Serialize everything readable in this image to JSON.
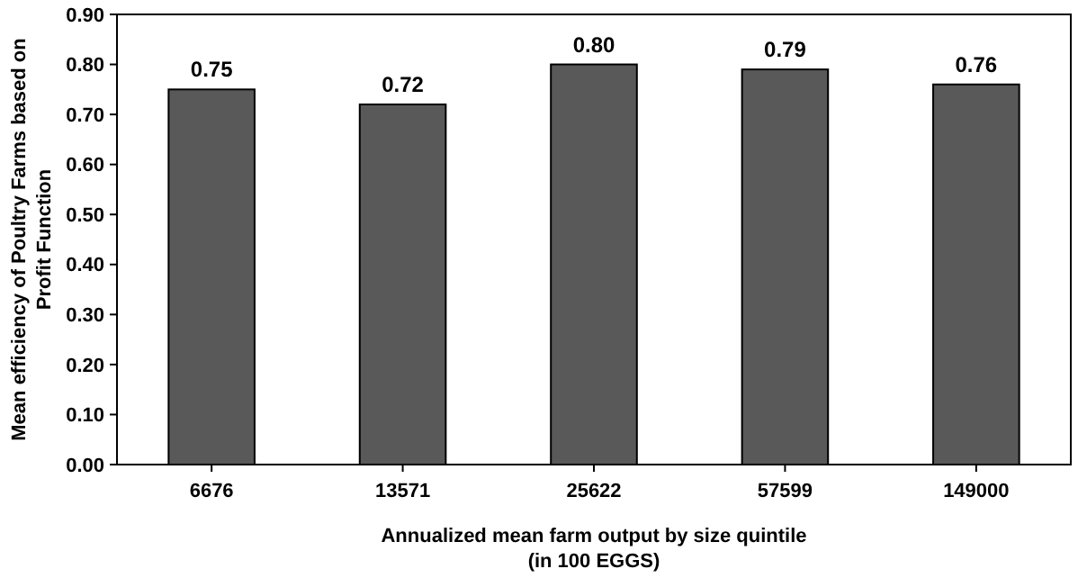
{
  "chart_data": {
    "type": "bar",
    "xlabel": "Annualized mean farm output by size quintile\n(in 100 EGGS)",
    "ylabel": "Mean efficiency of Poultry Farms based on\nProfit Function",
    "categories": [
      "6676",
      "13571",
      "25622",
      "57599",
      "149000"
    ],
    "values": [
      0.75,
      0.72,
      0.8,
      0.79,
      0.76
    ],
    "value_labels": [
      "0.75",
      "0.72",
      "0.80",
      "0.79",
      "0.76"
    ],
    "color": "#595959",
    "ylim": [
      0,
      0.9
    ],
    "yticks": [
      {
        "value": 0,
        "label": "0.00"
      },
      {
        "value": 0.1,
        "label": "0.10"
      },
      {
        "value": 0.2,
        "label": "0.20"
      },
      {
        "value": 0.3,
        "label": "0.30"
      },
      {
        "value": 0.4,
        "label": "0.40"
      },
      {
        "value": 0.5,
        "label": "0.50"
      },
      {
        "value": 0.6,
        "label": "0.60"
      },
      {
        "value": 0.7,
        "label": "0.70"
      },
      {
        "value": 0.8,
        "label": "0.80"
      },
      {
        "value": 0.9,
        "label": "0.90"
      }
    ],
    "grid": false
  }
}
